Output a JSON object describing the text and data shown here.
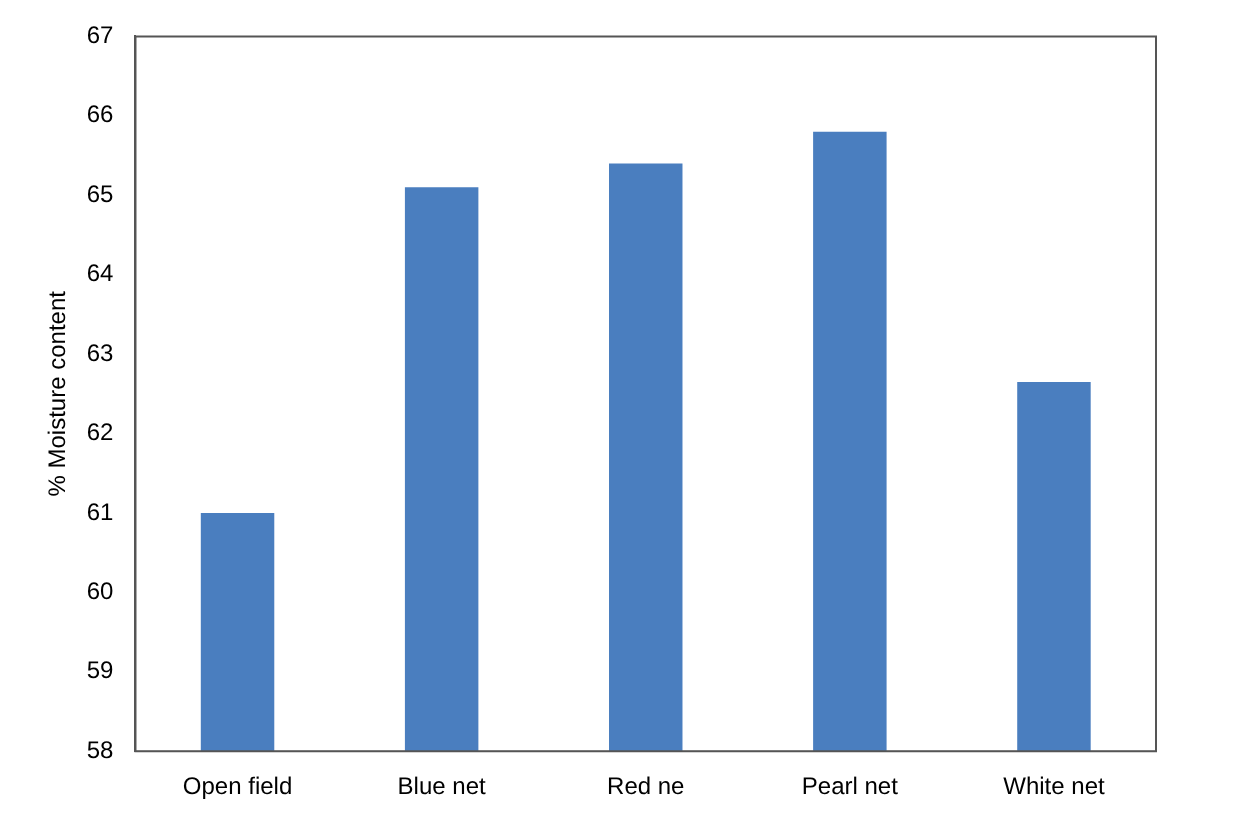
{
  "chart_data": {
    "type": "bar",
    "ylabel": "% Moisture content",
    "categories": [
      "Open field",
      "Blue net",
      "Red ne",
      "Pearl net",
      "White net"
    ],
    "values": [
      61.0,
      65.1,
      65.4,
      65.8,
      62.65
    ],
    "color": "#4a7ebf",
    "ylim": [
      58,
      67
    ],
    "yticks": [
      58,
      59,
      60,
      61,
      62,
      63,
      64,
      65,
      66,
      67
    ],
    "grid": false,
    "legend": false
  }
}
